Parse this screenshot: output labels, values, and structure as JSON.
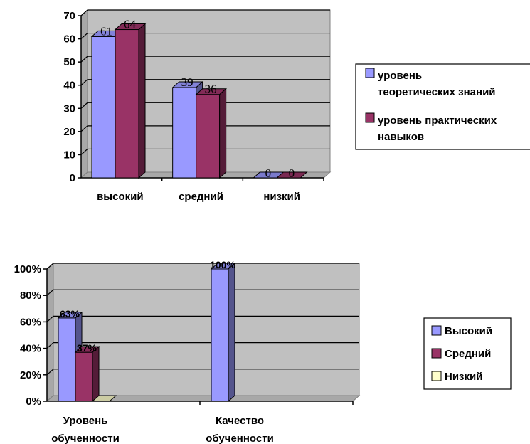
{
  "chart_data": [
    {
      "type": "bar",
      "categories": [
        "высокий",
        "средний",
        "низкий"
      ],
      "series": [
        {
          "name": "уровень теоретических знаний",
          "values": [
            61,
            39,
            0
          ],
          "labels": [
            "61",
            "39",
            "0"
          ],
          "color": "#9999ff"
        },
        {
          "name": "уровень практических навыков",
          "values": [
            64,
            36,
            0
          ],
          "labels": [
            "64",
            "36",
            "0"
          ],
          "color": "#993366"
        }
      ],
      "y_ticks": [
        "0",
        "10",
        "20",
        "30",
        "40",
        "50",
        "60",
        "70"
      ],
      "ylim": [
        0,
        70
      ],
      "grid": true,
      "legend": "right",
      "legend_lines": [
        [
          "уровень",
          "теоретических знаний"
        ],
        [
          "уровень практических",
          "навыков"
        ]
      ]
    },
    {
      "type": "bar",
      "categories": [
        [
          "Уровень",
          "обученности"
        ],
        [
          "Качество",
          "обученности"
        ]
      ],
      "series": [
        {
          "name": "Высокий",
          "values": [
            0.63,
            1.0
          ],
          "labels": [
            "63%",
            "100%"
          ],
          "color": "#9999ff"
        },
        {
          "name": "Средний",
          "values": [
            0.37,
            0
          ],
          "labels": [
            "37%",
            ""
          ],
          "color": "#993366"
        },
        {
          "name": "Низкий",
          "values": [
            0,
            0
          ],
          "labels": [
            "",
            ""
          ],
          "color": "#ffffcc"
        }
      ],
      "y_ticks": [
        "0%",
        "20%",
        "40%",
        "60%",
        "80%",
        "100%"
      ],
      "ylim": [
        0,
        1
      ],
      "grid": true,
      "legend": "right"
    }
  ],
  "colors": {
    "wall": "#c0c0c0",
    "floor": "#a8a8a8",
    "grid": "#000000"
  }
}
